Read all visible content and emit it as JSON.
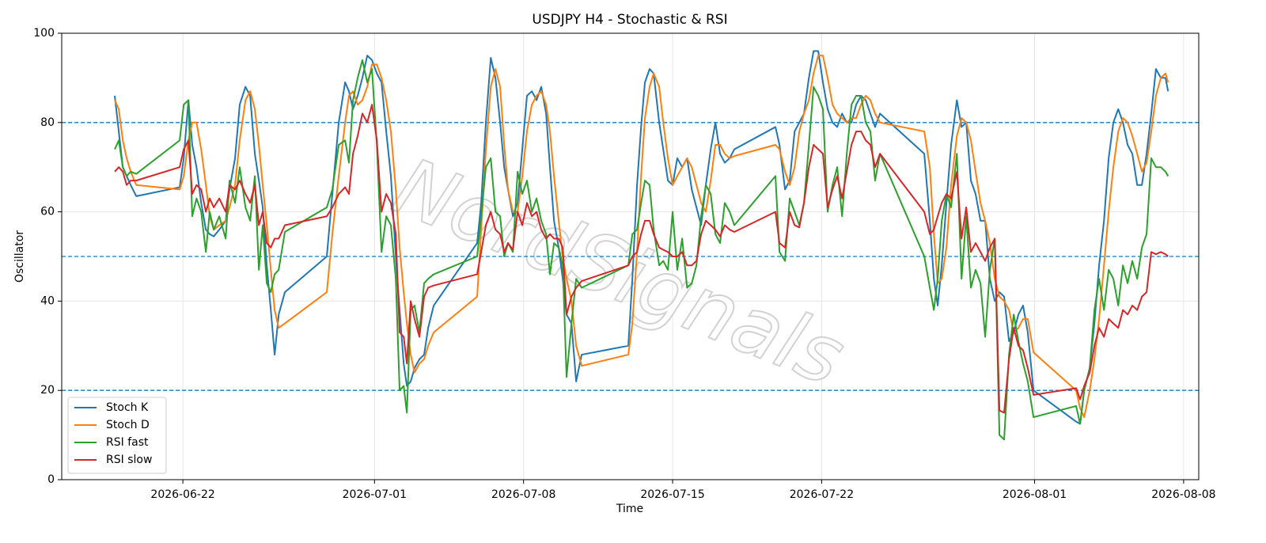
{
  "chart_data": {
    "type": "line",
    "title": "USDJPY H4 - Stochastic & RSI",
    "xlabel": "Time",
    "ylabel": "Oscillator",
    "watermark": "NordSignals",
    "xlim": [
      20620.31,
      20673.71
    ],
    "xticks": [
      {
        "value": 20626,
        "label": "2026-06-22"
      },
      {
        "value": 20635,
        "label": "2026-07-01"
      },
      {
        "value": 20642,
        "label": "2026-07-08"
      },
      {
        "value": 20649,
        "label": "2026-07-15"
      },
      {
        "value": 20656,
        "label": "2026-07-22"
      },
      {
        "value": 20666,
        "label": "2026-08-01"
      },
      {
        "value": 20673,
        "label": "2026-08-08"
      }
    ],
    "ylim": [
      0,
      100
    ],
    "yticks": [
      0,
      20,
      40,
      60,
      80,
      100
    ],
    "grid": true,
    "legend": "lower left",
    "hlines": [
      20,
      50,
      80
    ],
    "hline_color": "#1f77b4",
    "x": [
      20622.8,
      20622.99,
      20623.18,
      20623.36,
      20623.55,
      20623.81,
      20625.85,
      20626.04,
      20626.26,
      20626.44,
      20626.64,
      20626.86,
      20627.08,
      20627.26,
      20627.45,
      20627.71,
      20628.01,
      20628.19,
      20628.45,
      20628.67,
      20628.94,
      20629.16,
      20629.38,
      20629.57,
      20629.75,
      20629.94,
      20630.13,
      20630.31,
      20630.5,
      20630.79,
      20632.76,
      20633.02,
      20633.32,
      20633.62,
      20633.8,
      20633.99,
      20634.21,
      20634.43,
      20634.66,
      20634.88,
      20635.11,
      20635.33,
      20635.55,
      20635.77,
      20636.0,
      20636.18,
      20636.37,
      20636.52,
      20636.7,
      20636.88,
      20637.11,
      20637.33,
      20637.52,
      20637.78,
      20639.82,
      20640.01,
      20640.23,
      20640.46,
      20640.68,
      20640.9,
      20641.09,
      20641.27,
      20641.5,
      20641.72,
      20641.94,
      20642.16,
      20642.39,
      20642.61,
      20642.83,
      20643.06,
      20643.24,
      20643.43,
      20643.65,
      20643.84,
      20644.02,
      20644.25,
      20644.47,
      20644.73,
      20646.92,
      20647.11,
      20647.33,
      20647.52,
      20647.7,
      20647.92,
      20648.11,
      20648.37,
      20648.56,
      20648.78,
      20649.0,
      20649.22,
      20649.45,
      20649.68,
      20649.9,
      20650.12,
      20650.34,
      20650.56,
      20650.79,
      20651.01,
      20651.23,
      20651.45,
      20651.68,
      20651.9,
      20653.83,
      20654.02,
      20654.28,
      20654.5,
      20654.73,
      20654.95,
      20655.17,
      20655.4,
      20655.62,
      20655.84,
      20656.06,
      20656.28,
      20656.51,
      20656.73,
      20656.96,
      20657.18,
      20657.4,
      20657.62,
      20657.85,
      20658.07,
      20658.29,
      20658.51,
      20658.74,
      20660.82,
      20661.08,
      20661.27,
      20661.45,
      20661.64,
      20661.86,
      20662.08,
      20662.35,
      20662.57,
      20662.79,
      20663.01,
      20663.23,
      20663.46,
      20663.68,
      20663.9,
      20664.13,
      20664.35,
      20664.57,
      20664.8,
      20665.02,
      20665.24,
      20665.46,
      20665.68,
      20665.95,
      20667.95,
      20668.14,
      20668.33,
      20668.59,
      20668.81,
      20669.03,
      20669.26,
      20669.48,
      20669.7,
      20669.93,
      20670.15,
      20670.37,
      20670.59,
      20670.82,
      20671.04,
      20671.26,
      20671.48,
      20671.7,
      20671.93,
      20672.15,
      20672.27
    ],
    "series": [
      {
        "name": "Stoch K",
        "color": "#1f77b4",
        "values": [
          86,
          78,
          70,
          68,
          66,
          63.5,
          65.5,
          72,
          85,
          75,
          70,
          62,
          56,
          55,
          54.5,
          56,
          58,
          65,
          72,
          84,
          88,
          86,
          73,
          67,
          61,
          48,
          38,
          28,
          37,
          42,
          50,
          64,
          80,
          89,
          87,
          83,
          86,
          90,
          95,
          94,
          91,
          89,
          78,
          68,
          50,
          38,
          26,
          21,
          22,
          25,
          27,
          28,
          34,
          39,
          53,
          62,
          80,
          94.5,
          90,
          80,
          70,
          65,
          59,
          62,
          74,
          86,
          87,
          85,
          88,
          82,
          70,
          58,
          52,
          45,
          37,
          35,
          22,
          28,
          30,
          45,
          66,
          79,
          89,
          92,
          91,
          80,
          74,
          67,
          66,
          72,
          70,
          72,
          65,
          61,
          57,
          66,
          74,
          80,
          73,
          71,
          72,
          74,
          79,
          75,
          65,
          67,
          78,
          80,
          82,
          90,
          96,
          96,
          89,
          83,
          80,
          79,
          82,
          80,
          80,
          84,
          86,
          85,
          82,
          79,
          82,
          73,
          58,
          45,
          39,
          48,
          62,
          75,
          85,
          79,
          80,
          67,
          64,
          58,
          58,
          45,
          40,
          42,
          41,
          31,
          33,
          37,
          39,
          33,
          20,
          13,
          12.5,
          20,
          25,
          35,
          48,
          58,
          72,
          80,
          83,
          80,
          75,
          73,
          66,
          66,
          73,
          82,
          92,
          90,
          90,
          87
        ]
      },
      {
        "name": "Stoch D",
        "color": "#ff7f0e",
        "values": [
          85,
          83,
          76,
          72,
          69,
          66,
          65,
          68,
          76,
          80,
          80,
          74,
          66,
          59,
          56,
          57,
          58,
          61,
          66,
          76,
          85,
          87,
          83,
          75,
          66,
          57,
          47,
          38,
          34,
          35,
          42,
          55,
          68,
          80,
          86,
          87,
          84,
          85,
          88,
          93,
          93,
          90,
          85,
          78,
          65,
          52,
          42,
          35,
          28,
          24,
          26,
          27,
          30,
          33,
          41,
          56,
          74,
          88,
          92,
          88,
          75,
          65,
          60,
          60,
          68,
          78,
          84,
          86,
          87,
          84,
          78,
          68,
          58,
          50,
          45,
          40,
          30,
          25.5,
          28,
          35,
          51,
          68,
          81,
          88,
          91,
          88,
          80,
          72,
          66,
          68,
          70,
          72,
          70,
          66,
          62,
          60,
          67,
          75,
          75,
          73,
          72,
          72.5,
          75,
          74,
          69,
          66,
          70,
          78,
          82,
          85,
          91,
          95,
          95,
          90,
          84,
          82,
          81,
          80,
          81,
          81,
          84,
          86,
          85,
          82,
          80,
          78,
          70,
          55,
          44,
          45,
          52,
          66,
          77,
          81,
          80,
          76,
          69,
          62,
          58,
          53,
          45,
          41,
          40,
          38,
          33,
          34,
          36,
          36,
          28.5,
          20,
          16,
          14,
          20,
          27,
          36,
          48,
          60,
          70,
          78,
          81,
          80,
          77,
          73,
          69,
          71,
          78,
          86,
          90,
          91,
          89
        ]
      },
      {
        "name": "RSI fast",
        "color": "#2ca02c",
        "values": [
          74,
          76,
          70,
          68,
          69,
          68.5,
          76,
          84,
          85,
          59,
          63,
          60,
          51,
          60,
          56,
          59,
          54,
          67,
          62,
          70,
          61,
          58,
          68,
          47,
          57,
          44,
          42,
          46,
          47,
          55.5,
          61,
          65,
          75,
          76,
          71,
          85,
          90,
          94,
          89,
          92,
          75,
          51,
          59,
          57,
          45,
          20,
          21,
          15,
          38,
          39,
          33,
          44,
          45,
          46,
          50,
          59,
          70,
          72,
          60,
          59,
          50,
          53,
          51,
          69,
          64,
          67,
          60,
          63,
          58,
          55,
          46,
          53,
          52,
          48,
          23,
          35,
          45,
          43,
          48,
          55,
          56,
          62,
          67,
          66,
          56,
          48,
          49,
          47,
          60,
          47,
          54,
          43,
          44,
          48,
          59,
          66,
          64,
          55,
          53,
          62,
          60,
          57,
          68,
          51,
          49,
          63,
          60,
          57,
          62,
          75,
          88,
          86,
          83,
          60,
          66,
          70,
          59,
          73,
          84,
          86,
          86,
          80,
          78,
          67,
          73,
          50,
          43,
          38,
          45,
          58,
          64,
          61,
          73,
          45,
          59,
          43,
          47,
          44,
          32,
          47,
          54,
          10,
          9,
          28,
          37,
          31,
          26,
          22,
          14,
          16.5,
          12.5,
          20,
          25,
          38,
          45,
          38,
          47,
          45,
          39,
          48,
          44,
          49,
          45,
          52,
          55,
          72,
          70,
          70,
          69,
          68
        ]
      },
      {
        "name": "RSI slow",
        "color": "#d62728",
        "values": [
          69,
          70,
          69,
          66,
          67,
          67,
          70,
          74,
          76,
          64,
          66,
          65,
          60,
          63,
          61,
          63,
          60,
          66,
          65,
          67,
          64,
          62,
          66,
          57,
          60,
          53,
          52,
          54,
          54,
          57,
          59,
          61,
          64,
          65.5,
          64,
          73,
          77,
          82,
          80,
          84,
          76,
          60,
          64,
          62,
          55,
          33,
          32,
          26,
          40,
          36,
          32,
          41,
          43,
          43.5,
          46,
          51,
          57,
          60,
          56,
          55,
          51,
          53,
          51.5,
          60,
          57,
          62,
          59,
          60,
          56,
          54,
          55,
          54,
          54,
          52,
          37,
          41,
          43,
          44.5,
          48,
          50,
          51,
          55,
          58,
          58,
          55,
          52,
          51.5,
          51,
          50,
          50,
          51,
          48,
          48,
          49,
          55,
          58,
          57,
          56,
          54.5,
          57,
          56,
          55.5,
          60,
          53,
          52,
          60,
          57,
          56.5,
          62,
          70,
          75,
          74,
          73,
          61,
          65,
          68,
          63,
          69,
          75,
          78,
          78,
          76,
          75,
          70,
          73,
          60,
          55,
          56,
          59,
          62,
          64,
          63,
          69,
          54,
          61,
          51,
          53,
          51,
          49,
          52,
          54,
          15.5,
          15,
          27,
          34,
          30,
          29,
          25,
          19,
          20.5,
          18,
          21,
          24,
          30,
          34,
          32,
          36,
          35,
          34,
          38,
          37,
          39,
          38,
          41,
          42,
          51,
          50.5,
          51,
          50.5,
          50
        ]
      }
    ]
  }
}
